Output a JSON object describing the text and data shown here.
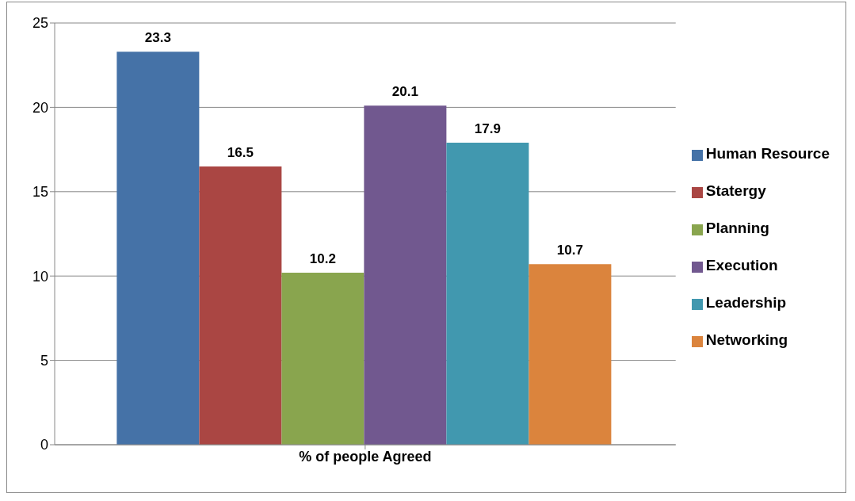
{
  "chart_data": {
    "type": "bar",
    "categories": [
      "% of people Agreed"
    ],
    "series": [
      {
        "name": "Human Resource",
        "color": "#4572a7",
        "values": [
          23.3
        ]
      },
      {
        "name": "Statergy",
        "color": "#aa4643",
        "values": [
          16.5
        ]
      },
      {
        "name": "Planning",
        "color": "#89a54e",
        "values": [
          10.2
        ]
      },
      {
        "name": "Execution",
        "color": "#71588f",
        "values": [
          20.1
        ]
      },
      {
        "name": "Leadership",
        "color": "#4198af",
        "values": [
          17.9
        ]
      },
      {
        "name": "Networking",
        "color": "#db843d",
        "values": [
          10.7
        ]
      }
    ],
    "ylim": [
      0,
      25
    ],
    "yticks": [
      0,
      5,
      10,
      15,
      20,
      25
    ],
    "grid": "y",
    "legend": "right",
    "data_labels": true
  }
}
